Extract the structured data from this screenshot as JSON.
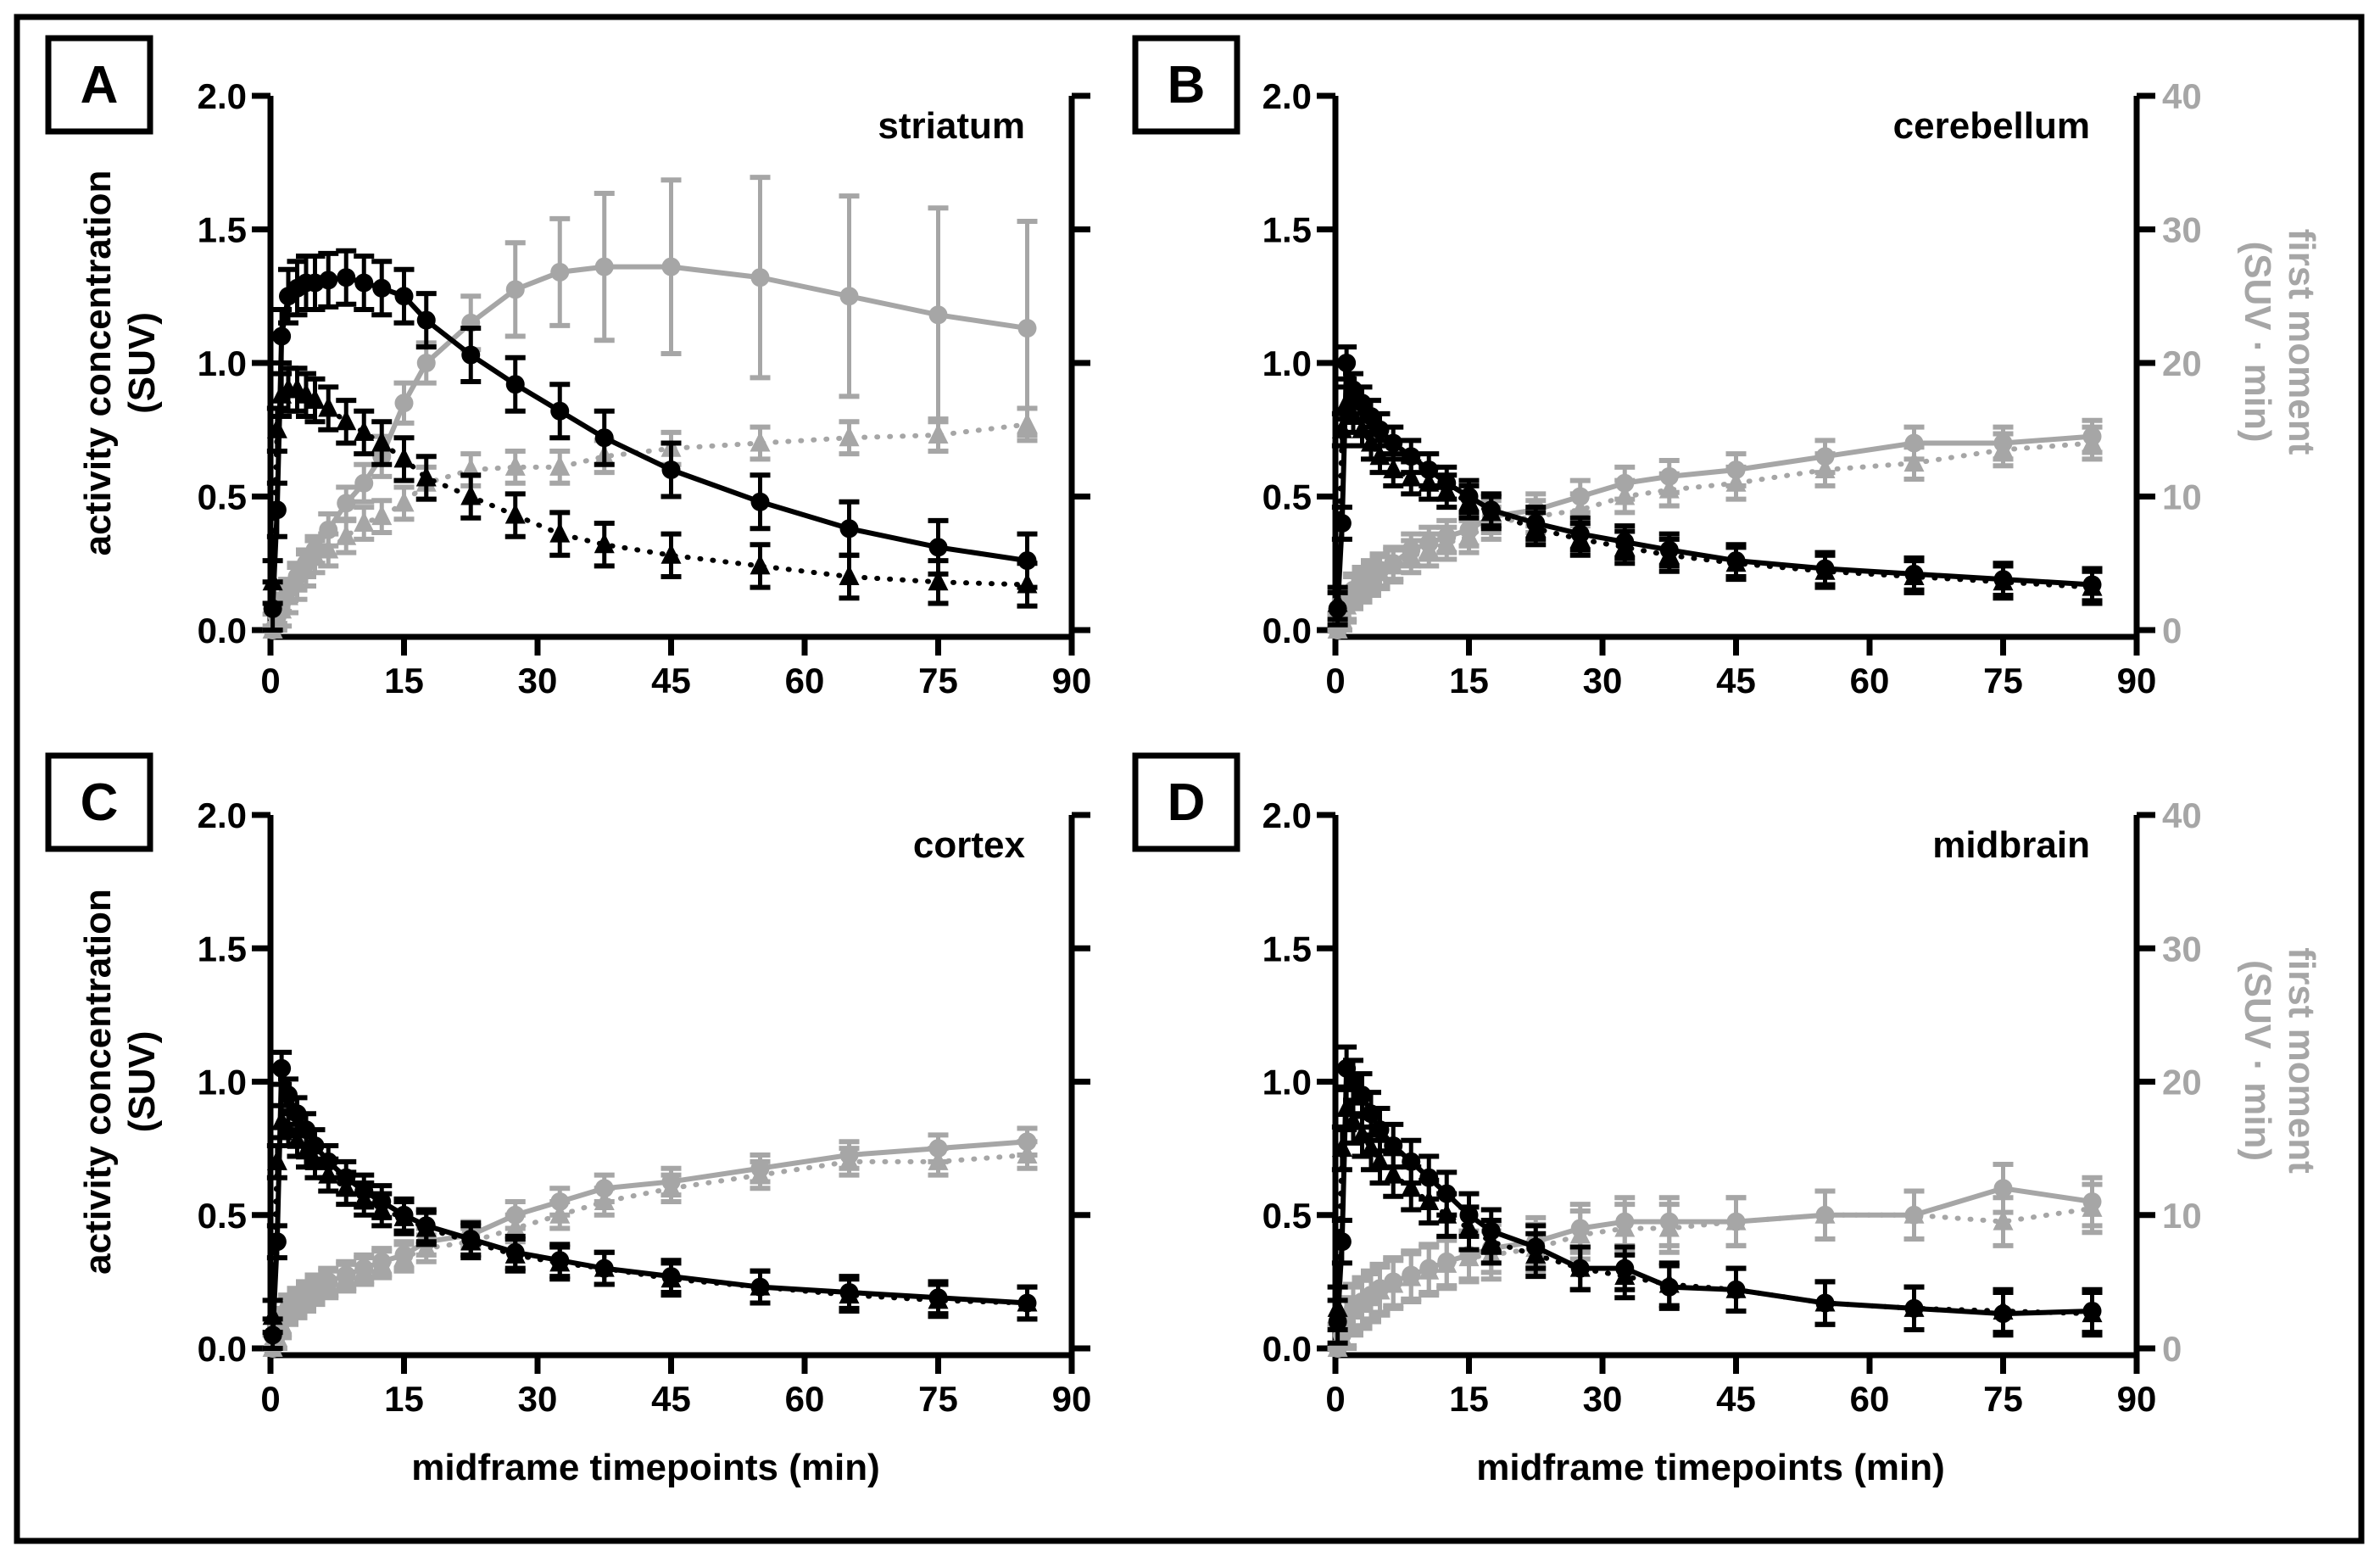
{
  "chart_data": {
    "type": "line",
    "shared": {
      "x": [
        0.25,
        0.75,
        1.25,
        2,
        3,
        4,
        5,
        6.5,
        8.5,
        10.5,
        12.5,
        15,
        17.5,
        22.5,
        27.5,
        32.5,
        37.5,
        45,
        55,
        65,
        75,
        85
      ],
      "xlabel": "midframe timepoints (min)",
      "ylabel_left": [
        "activity concentration",
        "(SUV)"
      ],
      "ylabel_right": [
        "first moment",
        "(SUV · min)"
      ],
      "xlim": [
        0,
        90
      ],
      "xticks": [
        0,
        15,
        30,
        45,
        60,
        75,
        90
      ],
      "ylim_left": [
        0,
        2.0
      ],
      "yticks_left": [
        "0.0",
        "0.5",
        "1.0",
        "1.5",
        "2.0"
      ],
      "ylim_right": [
        0,
        40
      ],
      "yticks_right": [
        "0",
        "10",
        "20",
        "30",
        "40"
      ],
      "colors": {
        "activity": "#000000",
        "first_moment": "#a6a6a6"
      }
    },
    "panels": [
      {
        "letter": "A",
        "title": "striatum",
        "series": [
          {
            "name": "activity circle (solid)",
            "axis": "left",
            "marker": "circle",
            "style": "solid",
            "values": [
              0.08,
              0.45,
              1.1,
              1.25,
              1.28,
              1.3,
              1.3,
              1.31,
              1.32,
              1.3,
              1.28,
              1.25,
              1.16,
              1.03,
              0.92,
              0.82,
              0.72,
              0.6,
              0.48,
              0.38,
              0.31,
              0.26
            ],
            "err": 0.1
          },
          {
            "name": "activity triangle (dotted)",
            "axis": "left",
            "marker": "triangle",
            "style": "dotted",
            "values": [
              0.18,
              0.75,
              0.88,
              0.9,
              0.9,
              0.88,
              0.86,
              0.83,
              0.78,
              0.74,
              0.7,
              0.64,
              0.57,
              0.5,
              0.43,
              0.36,
              0.32,
              0.28,
              0.24,
              0.2,
              0.18,
              0.17
            ],
            "err": 0.08
          },
          {
            "name": "first moment circle (solid)",
            "axis": "right",
            "marker": "circle",
            "style": "solid",
            "values": [
              0,
              1,
              2,
              3,
              4,
              5,
              6,
              7.5,
              9.5,
              11,
              13,
              17,
              20,
              23,
              25.5,
              26.8,
              27.2,
              27.2,
              26.4,
              25,
              23.6,
              22.6
            ],
            "err": [
              0.3,
              0.5,
              0.6,
              0.8,
              1,
              1,
              1,
              1.2,
              1.2,
              1.4,
              1.5,
              1.5,
              1.5,
              2,
              3.5,
              4,
              5.5,
              6.5,
              7.5,
              7.5,
              8,
              8
            ]
          },
          {
            "name": "first moment triangle (dotted)",
            "axis": "right",
            "marker": "triangle",
            "style": "dotted",
            "values": [
              0,
              0.8,
              1.5,
              2.5,
              3.5,
              4.5,
              5.5,
              6,
              7,
              8,
              8.5,
              9.5,
              11,
              12,
              12.2,
              12.2,
              13,
              13.6,
              14,
              14.4,
              14.6,
              15.4
            ],
            "err": 1.2
          }
        ]
      },
      {
        "letter": "B",
        "title": "cerebellum",
        "series": [
          {
            "name": "activity circle (solid)",
            "axis": "left",
            "marker": "circle",
            "style": "solid",
            "values": [
              0.08,
              0.4,
              1.0,
              0.9,
              0.85,
              0.8,
              0.75,
              0.7,
              0.65,
              0.6,
              0.55,
              0.5,
              0.45,
              0.4,
              0.36,
              0.33,
              0.3,
              0.26,
              0.23,
              0.21,
              0.19,
              0.17
            ],
            "err": 0.06
          },
          {
            "name": "activity triangle (dotted)",
            "axis": "left",
            "marker": "triangle",
            "style": "dotted",
            "values": [
              0.1,
              0.75,
              0.85,
              0.8,
              0.75,
              0.7,
              0.65,
              0.6,
              0.57,
              0.55,
              0.52,
              0.48,
              0.44,
              0.38,
              0.34,
              0.31,
              0.28,
              0.25,
              0.22,
              0.2,
              0.18,
              0.16
            ],
            "err": 0.06
          },
          {
            "name": "first moment circle (solid)",
            "axis": "right",
            "marker": "circle",
            "style": "solid",
            "values": [
              0,
              1,
              2,
              3,
              3.5,
              4,
              4.5,
              5,
              6,
              6.5,
              7,
              7.5,
              8.5,
              9,
              10,
              11,
              11.5,
              12,
              13,
              14,
              14,
              14.5
            ],
            "err": 1.2
          },
          {
            "name": "first moment triangle (dotted)",
            "axis": "right",
            "marker": "triangle",
            "style": "dotted",
            "values": [
              0,
              0.8,
              1.8,
              2.8,
              3.3,
              3.8,
              4.3,
              4.8,
              5.5,
              6,
              6.5,
              7,
              8,
              8.5,
              9,
              10,
              10.5,
              11,
              12,
              12.5,
              13.5,
              14
            ],
            "err": 1.2
          }
        ]
      },
      {
        "letter": "C",
        "title": "cortex",
        "series": [
          {
            "name": "activity circle (solid)",
            "axis": "left",
            "marker": "circle",
            "style": "solid",
            "values": [
              0.05,
              0.4,
              1.05,
              0.95,
              0.88,
              0.82,
              0.76,
              0.7,
              0.64,
              0.59,
              0.55,
              0.5,
              0.46,
              0.41,
              0.36,
              0.33,
              0.3,
              0.27,
              0.23,
              0.21,
              0.19,
              0.17
            ],
            "err": 0.06
          },
          {
            "name": "activity triangle (dotted)",
            "axis": "left",
            "marker": "triangle",
            "style": "dotted",
            "values": [
              0.12,
              0.7,
              0.85,
              0.82,
              0.78,
              0.74,
              0.7,
              0.65,
              0.6,
              0.56,
              0.52,
              0.49,
              0.45,
              0.4,
              0.35,
              0.32,
              0.3,
              0.26,
              0.23,
              0.2,
              0.18,
              0.17
            ],
            "err": 0.06
          },
          {
            "name": "first moment circle (solid)",
            "axis": "right",
            "marker": "circle",
            "style": "solid",
            "values": [
              0,
              1,
              2,
              3,
              3.5,
              4,
              4.5,
              5,
              5.5,
              6,
              6.5,
              7,
              8,
              8.5,
              10,
              11,
              12,
              12.5,
              13.5,
              14.5,
              15,
              15.5
            ],
            "err": 1.0
          },
          {
            "name": "first moment triangle (dotted)",
            "axis": "right",
            "marker": "triangle",
            "style": "dotted",
            "values": [
              0,
              0.8,
              1.8,
              2.8,
              3.3,
              3.8,
              4.3,
              4.8,
              5.3,
              5.8,
              6.3,
              6.8,
              7.5,
              8,
              9,
              10,
              11,
              12,
              13,
              14,
              14,
              14.5
            ],
            "err": 1.0
          }
        ]
      },
      {
        "letter": "D",
        "title": "midbrain",
        "series": [
          {
            "name": "activity circle (solid)",
            "axis": "left",
            "marker": "circle",
            "style": "solid",
            "values": [
              0.1,
              0.4,
              1.05,
              1.0,
              0.95,
              0.88,
              0.82,
              0.76,
              0.7,
              0.64,
              0.58,
              0.5,
              0.44,
              0.38,
              0.3,
              0.3,
              0.23,
              0.22,
              0.17,
              0.15,
              0.13,
              0.14
            ],
            "err": 0.08
          },
          {
            "name": "activity triangle (dotted)",
            "axis": "left",
            "marker": "triangle",
            "style": "dotted",
            "values": [
              0.15,
              0.75,
              0.9,
              0.85,
              0.8,
              0.75,
              0.7,
              0.65,
              0.6,
              0.55,
              0.5,
              0.45,
              0.4,
              0.35,
              0.3,
              0.27,
              0.24,
              0.22,
              0.17,
              0.15,
              0.14,
              0.13
            ],
            "err": 0.08
          },
          {
            "name": "first moment circle (solid)",
            "axis": "right",
            "marker": "circle",
            "style": "solid",
            "values": [
              0,
              1,
              2,
              3,
              3.5,
              4,
              4.5,
              5,
              5.5,
              6,
              6.5,
              7,
              7.5,
              8,
              9,
              9.5,
              9.5,
              9.5,
              10,
              10,
              12,
              11
            ],
            "err": 1.8
          },
          {
            "name": "first moment triangle (dotted)",
            "axis": "right",
            "marker": "triangle",
            "style": "dotted",
            "values": [
              0,
              0.8,
              1.8,
              2.8,
              3.3,
              3.8,
              4.3,
              4.8,
              5.3,
              5.8,
              6.3,
              6.8,
              7,
              7.5,
              8.5,
              9,
              9,
              9.5,
              10,
              10,
              9.5,
              10.5
            ],
            "err": 1.8
          }
        ]
      }
    ]
  }
}
